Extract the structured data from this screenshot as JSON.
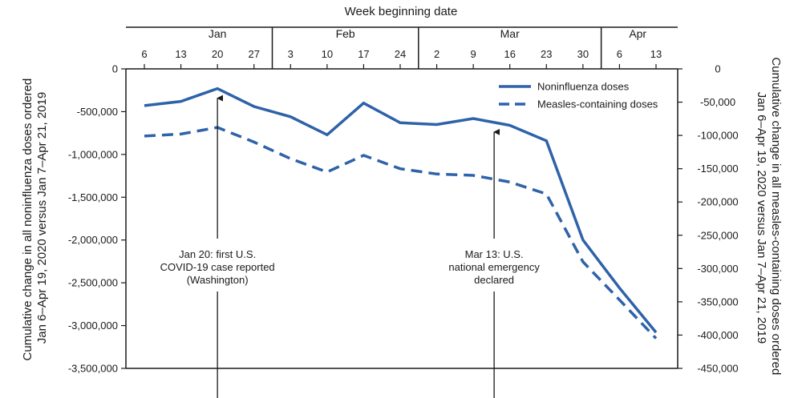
{
  "chart_data": {
    "type": "line",
    "title": "",
    "xlabel": "Week beginning date",
    "ylabel_left": "Cumulative change in all noninfluenza doses ordered Jan 6–Apr 19, 2020 versus Jan 7–Apr 21, 2019",
    "ylabel_left_lines": [
      "Cumulative change in all noninfluenza doses ordered",
      "Jan 6–Apr 19, 2020 versus Jan 7–Apr 21, 2019"
    ],
    "ylabel_right": "Cumulative change in all measles-containing doses ordered Jan 6–Apr 19, 2020 versus Jan 7–Apr 21, 2019",
    "ylabel_right_lines": [
      "Cumulative change in all measles-containing doses ordered",
      "Jan 6–Apr 19, 2020 versus Jan 7–Apr 21, 2019"
    ],
    "months": [
      "Jan",
      "Feb",
      "Mar",
      "Apr"
    ],
    "x": [
      "6",
      "13",
      "20",
      "27",
      "3",
      "10",
      "17",
      "24",
      "2",
      "9",
      "16",
      "23",
      "30",
      "6",
      "13"
    ],
    "x_dates": [
      "2020-01-06",
      "2020-01-13",
      "2020-01-20",
      "2020-01-27",
      "2020-02-03",
      "2020-02-10",
      "2020-02-17",
      "2020-02-24",
      "2020-03-02",
      "2020-03-09",
      "2020-03-16",
      "2020-03-23",
      "2020-03-30",
      "2020-04-06",
      "2020-04-13"
    ],
    "ylim_left": [
      -3500000,
      0
    ],
    "yticks_left": [
      "0",
      "-500,000",
      "-1,000,000",
      "-1,500,000",
      "-2,000,000",
      "-2,500,000",
      "-3,000,000",
      "-3,500,000"
    ],
    "ylim_right": [
      -450000,
      0
    ],
    "yticks_right": [
      "0",
      "-50,000",
      "-100,000",
      "-150,000",
      "-200,000",
      "-250,000",
      "-300,000",
      "-350,000",
      "-400,000",
      "-450,000"
    ],
    "grid": false,
    "legend_position": "top-right",
    "series": [
      {
        "name": "Noninfluenza doses",
        "axis": "left",
        "style": "solid",
        "values": [
          -430000,
          -380000,
          -230000,
          -440000,
          -560000,
          -770000,
          -400000,
          -630000,
          -650000,
          -580000,
          -660000,
          -840000,
          -2000000,
          -2560000,
          -3080000
        ]
      },
      {
        "name": "Measles-containing doses",
        "axis": "right",
        "style": "dashed",
        "values": [
          -101000,
          -98000,
          -88000,
          -110000,
          -135000,
          -155000,
          -130000,
          -150000,
          -158000,
          -160000,
          -170000,
          -188000,
          -290000,
          -347000,
          -405000
        ]
      }
    ],
    "annotations": [
      {
        "x_index": 2,
        "target_series": 0,
        "text_lines": [
          "Jan 20: first U.S.",
          "COVID-19 case reported",
          "(Washington)"
        ]
      },
      {
        "x_index": 9.57,
        "target_series": 0,
        "text_lines": [
          "Mar 13: U.S.",
          "national emergency",
          "declared"
        ]
      }
    ],
    "colors": {
      "line": "#2e62a9",
      "axis": "#1a1a1a"
    }
  }
}
